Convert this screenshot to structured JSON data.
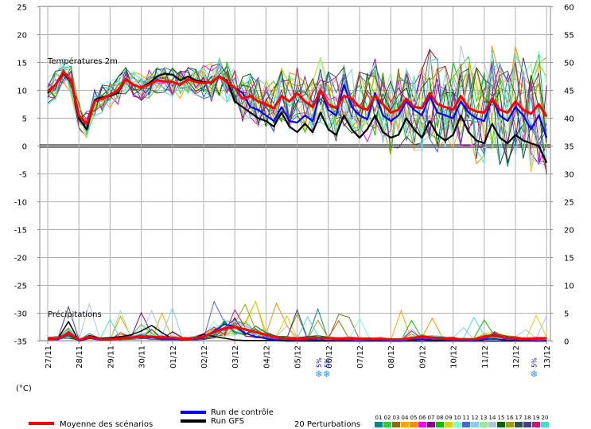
{
  "chart_data": {
    "type": "line",
    "panels": [
      {
        "title": "Températures 2m"
      },
      {
        "title": "Précipitations"
      }
    ],
    "x": [
      "27/11",
      "28/11",
      "29/11",
      "30/11",
      "01/12",
      "02/12",
      "03/12",
      "04/12",
      "05/12",
      "06/12",
      "07/12",
      "08/12",
      "09/12",
      "10/12",
      "11/12",
      "12/12",
      "13/12"
    ],
    "y_left": {
      "unit": "(°C)",
      "ticks": [
        25,
        20,
        15,
        10,
        5,
        0,
        -5,
        -10,
        -15,
        -20,
        -25,
        -30,
        -35
      ],
      "ylim": [
        -35,
        25
      ]
    },
    "y_right": {
      "ticks": [
        60,
        55,
        50,
        45,
        40,
        35,
        30,
        25,
        20,
        15,
        10,
        5,
        0
      ],
      "ylim": [
        0,
        60
      ]
    },
    "temperature": {
      "x": [
        0,
        0.25,
        0.5,
        0.75,
        1,
        1.25,
        1.5,
        1.75,
        2,
        2.25,
        2.5,
        2.75,
        3,
        3.25,
        3.5,
        3.75,
        4,
        4.25,
        4.5,
        4.75,
        5,
        5.25,
        5.5,
        5.75,
        6,
        6.25,
        6.5,
        6.75,
        7,
        7.25,
        7.5,
        7.75,
        8,
        8.25,
        8.5,
        8.75,
        9,
        9.25,
        9.5,
        9.75,
        10,
        10.25,
        10.5,
        10.75,
        11,
        11.25,
        11.5,
        11.75,
        12,
        12.25,
        12.5,
        12.75,
        13,
        13.25,
        13.5,
        13.75,
        14,
        14.25,
        14.5,
        14.75,
        15,
        15.25,
        15.5,
        15.75,
        16
      ],
      "series": [
        {
          "name": "Moyenne des scénarios",
          "color": "#ff0000",
          "values": [
            9.8,
            11,
            13.3,
            11.7,
            5.5,
            4,
            8,
            8.5,
            9.2,
            10,
            12,
            11,
            10.5,
            11,
            11.8,
            11.6,
            11.5,
            11,
            12,
            11.5,
            11.3,
            11.5,
            12.5,
            11.5,
            10.5,
            8.5,
            9,
            8,
            7.5,
            6.8,
            9,
            8,
            9.5,
            8,
            7,
            10,
            7.5,
            6.8,
            9,
            8.5,
            7,
            6.5,
            9,
            7.5,
            6,
            6.5,
            8.5,
            7,
            6.8,
            9.5,
            7.5,
            7,
            6.5,
            9,
            6.8,
            6.2,
            6,
            8.5,
            6.5,
            6,
            8,
            6.5,
            5.8,
            7.5,
            5.3
          ]
        },
        {
          "name": "Run de contrôle",
          "color": "#0000ff",
          "values": [
            9.8,
            11,
            13.3,
            11.7,
            5.5,
            4,
            8,
            8.5,
            9.2,
            10,
            12,
            11,
            10.5,
            11,
            11.8,
            11.6,
            11.5,
            11,
            12,
            11.5,
            11.3,
            11.5,
            12.5,
            11.5,
            10.5,
            9.5,
            7,
            6.5,
            5.5,
            4.5,
            7,
            4.5,
            4.2,
            5.5,
            4.5,
            10,
            6.5,
            5.5,
            11,
            7,
            5.5,
            4.8,
            9.5,
            5.5,
            4.5,
            5.5,
            8,
            6.5,
            5.5,
            9,
            6,
            5.5,
            5,
            8,
            6,
            5,
            4.5,
            8.5,
            5.5,
            4.5,
            7,
            5.5,
            3,
            5.5,
            1.5
          ]
        },
        {
          "name": "Run GFS",
          "color": "#000000",
          "values": [
            9.5,
            11,
            13,
            11.5,
            5,
            3,
            8.2,
            8.8,
            9,
            9.5,
            12,
            11,
            10.5,
            11.3,
            12.5,
            13,
            12.8,
            11.8,
            12.5,
            11.8,
            11.5,
            11.3,
            12.5,
            11.8,
            8,
            7,
            6,
            5,
            4.5,
            3.5,
            6,
            3.5,
            2.5,
            4,
            2.5,
            6,
            3,
            2,
            5.5,
            3,
            1.5,
            3,
            5.5,
            2.5,
            1.5,
            2,
            5,
            3,
            1.5,
            4.5,
            2,
            1,
            2,
            5.5,
            2.5,
            1,
            0.5,
            4,
            1.5,
            0.5,
            2,
            1,
            0.5,
            0,
            -3
          ]
        }
      ]
    },
    "precipitation": {
      "series": [
        {
          "name": "Moyenne des scénarios",
          "color": "#ff0000",
          "values": [
            0.4,
            0.5,
            1.4,
            0.2,
            0.8,
            0.3,
            0.3,
            0.5,
            0.6,
            0.8,
            0.8,
            0.6,
            0.6,
            0.4,
            0.5,
            0.8,
            1.6,
            2.3,
            2.5,
            2.1,
            1.6,
            1.1,
            0.6,
            0.5,
            0.4,
            0.5,
            0.6,
            0.5,
            0.4,
            0.5,
            0.4,
            0.4,
            0.4,
            0.3,
            0.3,
            0.5,
            0.8,
            0.6,
            0.5,
            0.4,
            0.3,
            0.3,
            0.8,
            1,
            0.6,
            0.5,
            0.4,
            0.4,
            0.5
          ]
        },
        {
          "name": "Run de contrôle",
          "color": "#0000ff",
          "values": [
            0.3,
            0.3,
            1.2,
            0,
            0.5,
            0.2,
            0.2,
            0.4,
            0.5,
            0.7,
            0.6,
            0.4,
            0.4,
            0.2,
            0.3,
            0.6,
            1.8,
            3,
            2.6,
            1.4,
            0.8,
            0.4,
            0.2,
            0.1,
            0.1,
            0.2,
            0.2,
            0.1,
            0.1,
            0.1,
            0,
            0.1,
            0.1,
            0,
            0,
            0.2,
            0.3,
            0.2,
            0.1,
            0.1,
            0.1,
            0,
            0.3,
            0.4,
            0.2,
            0.1,
            0.1,
            0,
            0.1
          ]
        },
        {
          "name": "Run GFS",
          "color": "#000000",
          "values": [
            0.4,
            0.5,
            3.5,
            0,
            1,
            0.5,
            0.6,
            0.8,
            1.1,
            1.8,
            2.8,
            1.5,
            0.4,
            0.2,
            0.5,
            1.2,
            0.8,
            0.5,
            0.2,
            0.1,
            0.1,
            0.1,
            0.1,
            0,
            0,
            0,
            0,
            0,
            0,
            0,
            0,
            0,
            0,
            0,
            0,
            0,
            0,
            0,
            0,
            0,
            0,
            0,
            0,
            0,
            0,
            0,
            0,
            0,
            0
          ]
        }
      ]
    },
    "perturbations": {
      "count": 20,
      "label": "20 Perturbations",
      "colors": [
        "#008b8b",
        "#32cd32",
        "#8b6914",
        "#ffa500",
        "#ff8c00",
        "#ff00ff",
        "#8b008b",
        "#00c000",
        "#d4d400",
        "#7fffd4",
        "#4169e1",
        "#87ceeb",
        "#90ee90",
        "#b0c4de",
        "#006400",
        "#a0a000",
        "#2f4f4f",
        "#483d8b",
        "#c71585",
        "#40e0d0"
      ]
    },
    "snow_markers": [
      {
        "label": "5%",
        "x": 8.7
      },
      {
        "label": "5%",
        "x": 8.95
      },
      {
        "label": "5%",
        "x": 15.6
      }
    ],
    "legend": [
      {
        "label": "Moyenne des scénarios",
        "color": "#ff0000"
      },
      {
        "label": "Run de contrôle",
        "color": "#0000ff"
      },
      {
        "label": "Run GFS",
        "color": "#000000"
      },
      {
        "label": "20 Perturbations"
      }
    ]
  }
}
